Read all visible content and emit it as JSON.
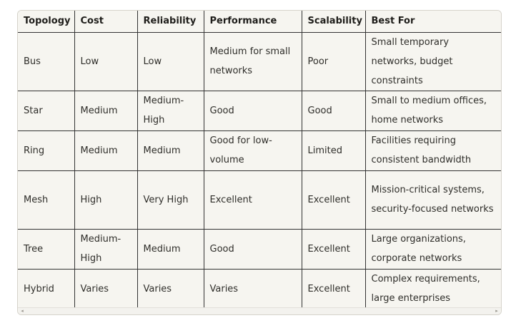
{
  "table": {
    "headers": [
      "Topology",
      "Cost",
      "Reliability",
      "Performance",
      "Scalability",
      "Best For"
    ],
    "rows": [
      {
        "topology": "Bus",
        "cost": "Low",
        "reliability": "Low",
        "performance": "Medium for small networks",
        "scalability": "Poor",
        "best_for": "Small temporary networks, budget constraints"
      },
      {
        "topology": "Star",
        "cost": "Medium",
        "reliability": "Medium-High",
        "performance": "Good",
        "scalability": "Good",
        "best_for": "Small to medium offices, home networks"
      },
      {
        "topology": "Ring",
        "cost": "Medium",
        "reliability": "Medium",
        "performance": "Good for low-volume",
        "scalability": "Limited",
        "best_for": "Facilities requiring consistent bandwidth"
      },
      {
        "topology": "Mesh",
        "cost": "High",
        "reliability": "Very High",
        "performance": "Excellent",
        "scalability": "Excellent",
        "best_for": "Mission-critical systems, security-focused networks"
      },
      {
        "topology": "Tree",
        "cost": "Medium-High",
        "reliability": "Medium",
        "performance": "Good",
        "scalability": "Excellent",
        "best_for": "Large organizations, corporate networks"
      },
      {
        "topology": "Hybrid",
        "cost": "Varies",
        "reliability": "Varies",
        "performance": "Varies",
        "scalability": "Excellent",
        "best_for": "Complex requirements, large enterprises"
      }
    ]
  },
  "scrollbar": {
    "left_arrow_icon": "chevron-left-icon",
    "right_arrow_icon": "chevron-right-icon",
    "left_arrow_glyph": "◂",
    "right_arrow_glyph": "▸"
  }
}
